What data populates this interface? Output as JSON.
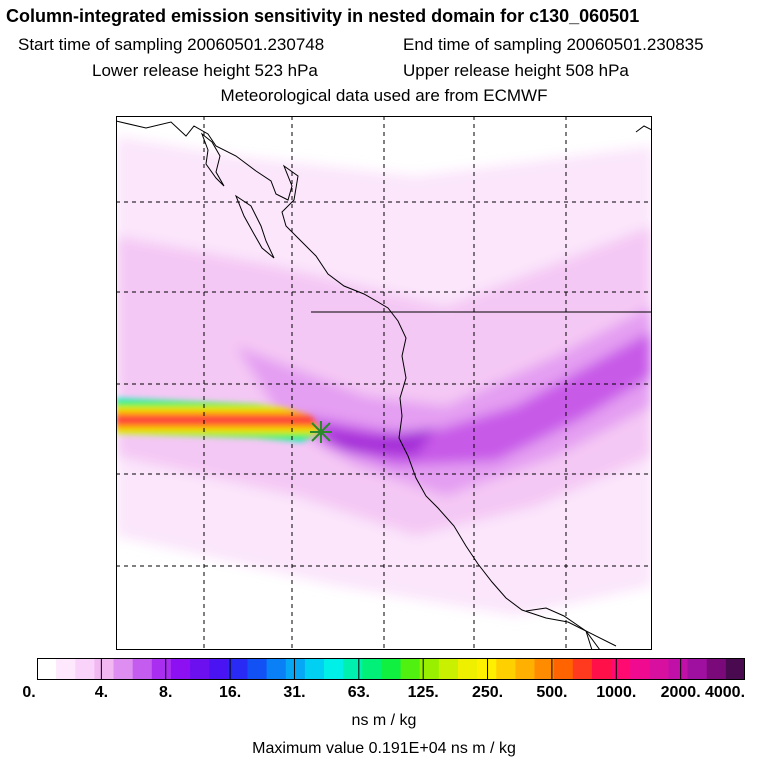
{
  "header": {
    "title": "Column-integrated emission sensitivity in nested domain for c130_060501",
    "start": "Start time of sampling 20060501.230748",
    "end": "End time of sampling 20060501.230835",
    "lower": "Lower release height  523 hPa",
    "upper": "Upper release height  508 hPa",
    "met": "Meteorological data used are from ECMWF"
  },
  "colorbar": {
    "ticks": [
      "0.",
      "4.",
      "8.",
      "16.",
      "31.",
      "63.",
      "125.",
      "250.",
      "500.",
      "1000.",
      "2000.",
      "4000."
    ],
    "colors": [
      "#ffffff",
      "#fde8fd",
      "#f9d3f9",
      "#f2b8f2",
      "#dd8ef0",
      "#c45cf0",
      "#a92ef0",
      "#8c10f2",
      "#6c10f0",
      "#4a14f2",
      "#2a2af5",
      "#1252f5",
      "#0a80f7",
      "#06a8f5",
      "#02d0f2",
      "#00f0e8",
      "#00f0b0",
      "#00f078",
      "#10f040",
      "#50f010",
      "#98f000",
      "#c8f000",
      "#eef000",
      "#fff000",
      "#ffd000",
      "#ffb000",
      "#ff8c00",
      "#ff6400",
      "#ff3a1e",
      "#ff1048",
      "#ff0a70",
      "#f00a90",
      "#d810a0",
      "#c010a8",
      "#a010a0",
      "#7a0a7a",
      "#4a0a50"
    ],
    "units": "ns m / kg",
    "max_label": "Maximum value  0.191E+04 ns m / kg"
  },
  "map": {
    "lowest_color": "#fbe6fb",
    "low_color": "#f4c8f4",
    "mid_color": "#e49ef2",
    "high_color": "#c85ae8",
    "peak_color": "#a52fd8",
    "marker_color": "#2a8a2a"
  }
}
